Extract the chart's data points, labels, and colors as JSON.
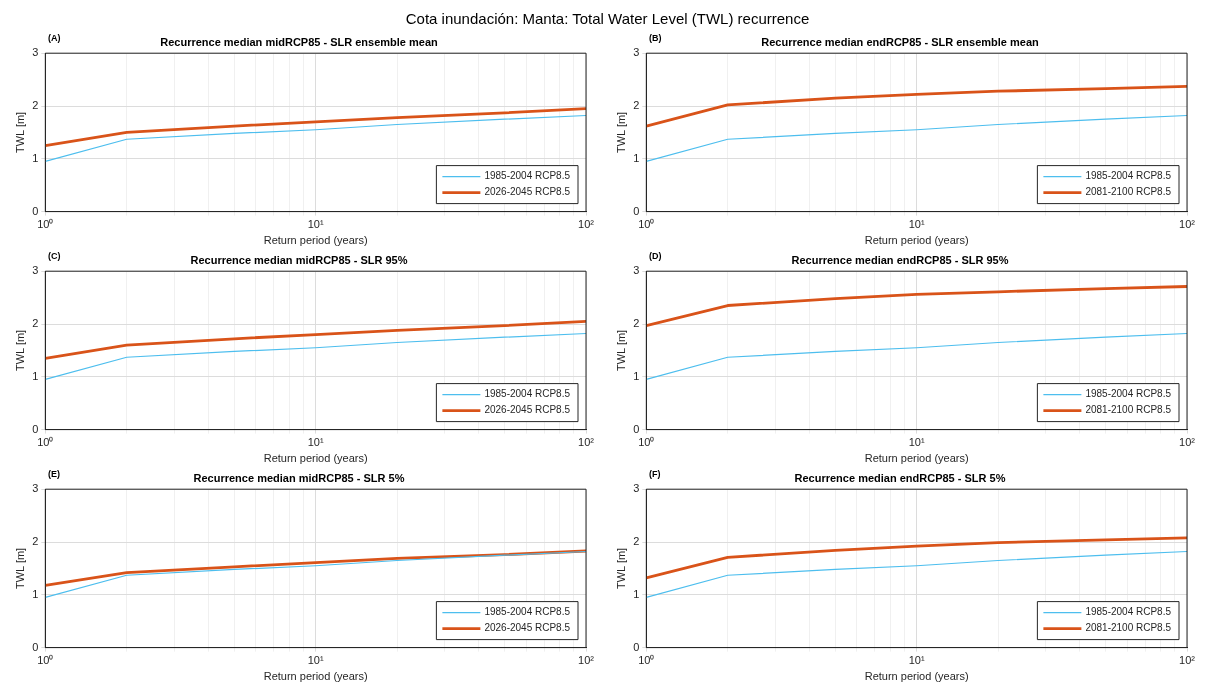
{
  "chart_data": [
    {
      "type": "line",
      "title": "Recurrence median midRCP85 - SLR ensemble mean",
      "xlabel": "Return period (years)",
      "ylabel": "TWL [m]",
      "annotations": [
        "Cota inundación: Manta: Total Water Level (TWL) recurrence",
        "(A)"
      ],
      "x": [
        1,
        2,
        5,
        10,
        20,
        50,
        100
      ],
      "series": [
        {
          "name": "1985-2004 RCP8.5",
          "color": "#4dbeee",
          "values": [
            0.95,
            1.37,
            1.48,
            1.55,
            1.65,
            1.75,
            1.82
          ]
        },
        {
          "name": "2026-2045 RCP8.5",
          "color": "#d95319",
          "values": [
            1.25,
            1.5,
            1.62,
            1.7,
            1.78,
            1.87,
            1.95
          ]
        }
      ],
      "xlim": [
        1,
        100
      ],
      "ylim": [
        0,
        3
      ],
      "log": "x",
      "xticks": [
        {
          "value": 1,
          "label": "10⁰"
        },
        {
          "value": 2,
          "label": null
        },
        {
          "value": 3,
          "label": null
        },
        {
          "value": 4,
          "label": null
        },
        {
          "value": 5,
          "label": null
        },
        {
          "value": 6,
          "label": null
        },
        {
          "value": 7,
          "label": null
        },
        {
          "value": 8,
          "label": null
        },
        {
          "value": 9,
          "label": null
        },
        {
          "value": 10,
          "label": "10¹"
        },
        {
          "value": 20,
          "label": null
        },
        {
          "value": 30,
          "label": null
        },
        {
          "value": 40,
          "label": null
        },
        {
          "value": 50,
          "label": null
        },
        {
          "value": 60,
          "label": null
        },
        {
          "value": 70,
          "label": null
        },
        {
          "value": 80,
          "label": null
        },
        {
          "value": 90,
          "label": null
        },
        {
          "value": 100,
          "label": "10²"
        }
      ],
      "yticks": [
        0,
        1,
        2,
        3
      ],
      "grid": true,
      "legend": "bottom right",
      "marker": "none"
    },
    {
      "type": "line",
      "title": "Recurrence median endRCP85 - SLR ensemble mean",
      "xlabel": "Return period (years)",
      "ylabel": "TWL [m]",
      "annotations": [
        "(B)"
      ],
      "x": [
        1,
        2,
        5,
        10,
        20,
        50,
        100
      ],
      "series": [
        {
          "name": "1985-2004 RCP8.5",
          "color": "#4dbeee",
          "values": [
            0.95,
            1.37,
            1.48,
            1.55,
            1.65,
            1.75,
            1.82
          ]
        },
        {
          "name": "2081-2100 RCP8.5",
          "color": "#d95319",
          "values": [
            1.62,
            2.02,
            2.15,
            2.22,
            2.28,
            2.33,
            2.37
          ]
        }
      ],
      "xlim": [
        1,
        100
      ],
      "ylim": [
        0,
        3
      ],
      "log": "x",
      "xticks": [
        {
          "value": 1,
          "label": "10⁰"
        },
        {
          "value": 2,
          "label": null
        },
        {
          "value": 3,
          "label": null
        },
        {
          "value": 4,
          "label": null
        },
        {
          "value": 5,
          "label": null
        },
        {
          "value": 6,
          "label": null
        },
        {
          "value": 7,
          "label": null
        },
        {
          "value": 8,
          "label": null
        },
        {
          "value": 9,
          "label": null
        },
        {
          "value": 10,
          "label": "10¹"
        },
        {
          "value": 20,
          "label": null
        },
        {
          "value": 30,
          "label": null
        },
        {
          "value": 40,
          "label": null
        },
        {
          "value": 50,
          "label": null
        },
        {
          "value": 60,
          "label": null
        },
        {
          "value": 70,
          "label": null
        },
        {
          "value": 80,
          "label": null
        },
        {
          "value": 90,
          "label": null
        },
        {
          "value": 100,
          "label": "10²"
        }
      ],
      "yticks": [
        0,
        1,
        2,
        3
      ],
      "grid": true,
      "legend": "bottom right",
      "marker": "none"
    },
    {
      "type": "line",
      "title": "Recurrence median midRCP85 - SLR 95%",
      "xlabel": "Return period (years)",
      "ylabel": "TWL [m]",
      "annotations": [
        "(C)"
      ],
      "x": [
        1,
        2,
        5,
        10,
        20,
        50,
        100
      ],
      "series": [
        {
          "name": "1985-2004 RCP8.5",
          "color": "#4dbeee",
          "values": [
            0.95,
            1.37,
            1.48,
            1.55,
            1.65,
            1.75,
            1.82
          ]
        },
        {
          "name": "2026-2045 RCP8.5",
          "color": "#d95319",
          "values": [
            1.35,
            1.6,
            1.72,
            1.8,
            1.88,
            1.97,
            2.05
          ]
        }
      ],
      "xlim": [
        1,
        100
      ],
      "ylim": [
        0,
        3
      ],
      "log": "x",
      "xticks": [
        {
          "value": 1,
          "label": "10⁰"
        },
        {
          "value": 2,
          "label": null
        },
        {
          "value": 3,
          "label": null
        },
        {
          "value": 4,
          "label": null
        },
        {
          "value": 5,
          "label": null
        },
        {
          "value": 6,
          "label": null
        },
        {
          "value": 7,
          "label": null
        },
        {
          "value": 8,
          "label": null
        },
        {
          "value": 9,
          "label": null
        },
        {
          "value": 10,
          "label": "10¹"
        },
        {
          "value": 20,
          "label": null
        },
        {
          "value": 30,
          "label": null
        },
        {
          "value": 40,
          "label": null
        },
        {
          "value": 50,
          "label": null
        },
        {
          "value": 60,
          "label": null
        },
        {
          "value": 70,
          "label": null
        },
        {
          "value": 80,
          "label": null
        },
        {
          "value": 90,
          "label": null
        },
        {
          "value": 100,
          "label": "10²"
        }
      ],
      "yticks": [
        0,
        1,
        2,
        3
      ],
      "grid": true,
      "legend": "bottom right",
      "marker": "none"
    },
    {
      "type": "line",
      "title": "Recurrence median endRCP85 - SLR 95%",
      "xlabel": "Return period (years)",
      "ylabel": "TWL [m]",
      "annotations": [
        "(D)"
      ],
      "x": [
        1,
        2,
        5,
        10,
        20,
        50,
        100
      ],
      "series": [
        {
          "name": "1985-2004 RCP8.5",
          "color": "#4dbeee",
          "values": [
            0.95,
            1.37,
            1.48,
            1.55,
            1.65,
            1.75,
            1.82
          ]
        },
        {
          "name": "2081-2100 RCP8.5",
          "color": "#d95319",
          "values": [
            1.97,
            2.35,
            2.48,
            2.56,
            2.61,
            2.67,
            2.71
          ]
        }
      ],
      "xlim": [
        1,
        100
      ],
      "ylim": [
        0,
        3
      ],
      "log": "x",
      "xticks": [
        {
          "value": 1,
          "label": "10⁰"
        },
        {
          "value": 2,
          "label": null
        },
        {
          "value": 3,
          "label": null
        },
        {
          "value": 4,
          "label": null
        },
        {
          "value": 5,
          "label": null
        },
        {
          "value": 6,
          "label": null
        },
        {
          "value": 7,
          "label": null
        },
        {
          "value": 8,
          "label": null
        },
        {
          "value": 9,
          "label": null
        },
        {
          "value": 10,
          "label": "10¹"
        },
        {
          "value": 20,
          "label": null
        },
        {
          "value": 30,
          "label": null
        },
        {
          "value": 40,
          "label": null
        },
        {
          "value": 50,
          "label": null
        },
        {
          "value": 60,
          "label": null
        },
        {
          "value": 70,
          "label": null
        },
        {
          "value": 80,
          "label": null
        },
        {
          "value": 90,
          "label": null
        },
        {
          "value": 100,
          "label": "10²"
        }
      ],
      "yticks": [
        0,
        1,
        2,
        3
      ],
      "grid": true,
      "legend": "bottom right",
      "marker": "none"
    },
    {
      "type": "line",
      "title": "Recurrence median midRCP85 - SLR 5%",
      "xlabel": "Return period (years)",
      "ylabel": "TWL [m]",
      "annotations": [
        "(E)"
      ],
      "x": [
        1,
        2,
        5,
        10,
        20,
        50,
        100
      ],
      "series": [
        {
          "name": "1985-2004 RCP8.5",
          "color": "#4dbeee",
          "values": [
            0.95,
            1.37,
            1.48,
            1.55,
            1.65,
            1.75,
            1.82
          ]
        },
        {
          "name": "2026-2045 RCP8.5",
          "color": "#d95319",
          "values": [
            1.18,
            1.42,
            1.53,
            1.61,
            1.69,
            1.76,
            1.83
          ]
        }
      ],
      "xlim": [
        1,
        100
      ],
      "ylim": [
        0,
        3
      ],
      "log": "x",
      "xticks": [
        {
          "value": 1,
          "label": "10⁰"
        },
        {
          "value": 2,
          "label": null
        },
        {
          "value": 3,
          "label": null
        },
        {
          "value": 4,
          "label": null
        },
        {
          "value": 5,
          "label": null
        },
        {
          "value": 6,
          "label": null
        },
        {
          "value": 7,
          "label": null
        },
        {
          "value": 8,
          "label": null
        },
        {
          "value": 9,
          "label": null
        },
        {
          "value": 10,
          "label": "10¹"
        },
        {
          "value": 20,
          "label": null
        },
        {
          "value": 30,
          "label": null
        },
        {
          "value": 40,
          "label": null
        },
        {
          "value": 50,
          "label": null
        },
        {
          "value": 60,
          "label": null
        },
        {
          "value": 70,
          "label": null
        },
        {
          "value": 80,
          "label": null
        },
        {
          "value": 90,
          "label": null
        },
        {
          "value": 100,
          "label": "10²"
        }
      ],
      "yticks": [
        0,
        1,
        2,
        3
      ],
      "grid": true,
      "legend": "bottom right",
      "marker": "none"
    },
    {
      "type": "line",
      "title": "Recurrence median endRCP85 - SLR 5%",
      "xlabel": "Return period (years)",
      "ylabel": "TWL [m]",
      "annotations": [
        "(F)"
      ],
      "x": [
        1,
        2,
        5,
        10,
        20,
        50,
        100
      ],
      "series": [
        {
          "name": "1985-2004 RCP8.5",
          "color": "#4dbeee",
          "values": [
            0.95,
            1.37,
            1.48,
            1.55,
            1.65,
            1.75,
            1.82
          ]
        },
        {
          "name": "2081-2100 RCP8.5",
          "color": "#d95319",
          "values": [
            1.32,
            1.71,
            1.84,
            1.92,
            1.99,
            2.04,
            2.08
          ]
        }
      ],
      "xlim": [
        1,
        100
      ],
      "ylim": [
        0,
        3
      ],
      "log": "x",
      "xticks": [
        {
          "value": 1,
          "label": "10⁰"
        },
        {
          "value": 2,
          "label": null
        },
        {
          "value": 3,
          "label": null
        },
        {
          "value": 4,
          "label": null
        },
        {
          "value": 5,
          "label": null
        },
        {
          "value": 6,
          "label": null
        },
        {
          "value": 7,
          "label": null
        },
        {
          "value": 8,
          "label": null
        },
        {
          "value": 9,
          "label": null
        },
        {
          "value": 10,
          "label": "10¹"
        },
        {
          "value": 20,
          "label": null
        },
        {
          "value": 30,
          "label": null
        },
        {
          "value": 40,
          "label": null
        },
        {
          "value": 50,
          "label": null
        },
        {
          "value": 60,
          "label": null
        },
        {
          "value": 70,
          "label": null
        },
        {
          "value": 80,
          "label": null
        },
        {
          "value": 90,
          "label": null
        },
        {
          "value": 100,
          "label": "10²"
        }
      ],
      "yticks": [
        0,
        1,
        2,
        3
      ],
      "grid": true,
      "legend": "bottom right",
      "marker": "none"
    }
  ]
}
